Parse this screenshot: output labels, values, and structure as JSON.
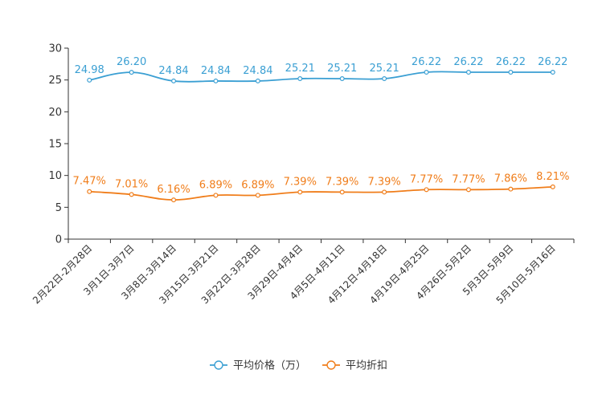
{
  "chart_data": {
    "type": "line",
    "title": "",
    "xlabel": "",
    "ylabel": "",
    "ylim": [
      0,
      30
    ],
    "yticks": [
      0,
      5,
      10,
      15,
      20,
      25,
      30
    ],
    "grid": false,
    "legend_position": "bottom-center",
    "categories": [
      "2月22日-2月28日",
      "3月1日-3月7日",
      "3月8日-3月14日",
      "3月15日-3月21日",
      "3月22日-3月28日",
      "3月29日-4月4日",
      "4月5日-4月11日",
      "4月12日-4月18日",
      "4月19日-4月25日",
      "4月26日-5月2日",
      "5月3日-5月9日",
      "5月10日-5月16日"
    ],
    "series": [
      {
        "name": "平均价格（万）",
        "color": "#3a9fd3",
        "values": [
          24.98,
          26.2,
          24.84,
          24.84,
          24.84,
          25.21,
          25.21,
          25.21,
          26.22,
          26.22,
          26.22,
          26.22
        ],
        "labels": [
          "24.98",
          "26.20",
          "24.84",
          "24.84",
          "24.84",
          "25.21",
          "25.21",
          "25.21",
          "26.22",
          "26.22",
          "26.22",
          "26.22"
        ]
      },
      {
        "name": "平均折扣",
        "color": "#f07d1a",
        "values": [
          7.47,
          7.01,
          6.16,
          6.89,
          6.89,
          7.39,
          7.39,
          7.39,
          7.77,
          7.77,
          7.86,
          8.21
        ],
        "labels": [
          "7.47%",
          "7.01%",
          "6.16%",
          "6.89%",
          "6.89%",
          "7.39%",
          "7.39%",
          "7.39%",
          "7.77%",
          "7.77%",
          "7.86%",
          "8.21%"
        ]
      }
    ]
  }
}
